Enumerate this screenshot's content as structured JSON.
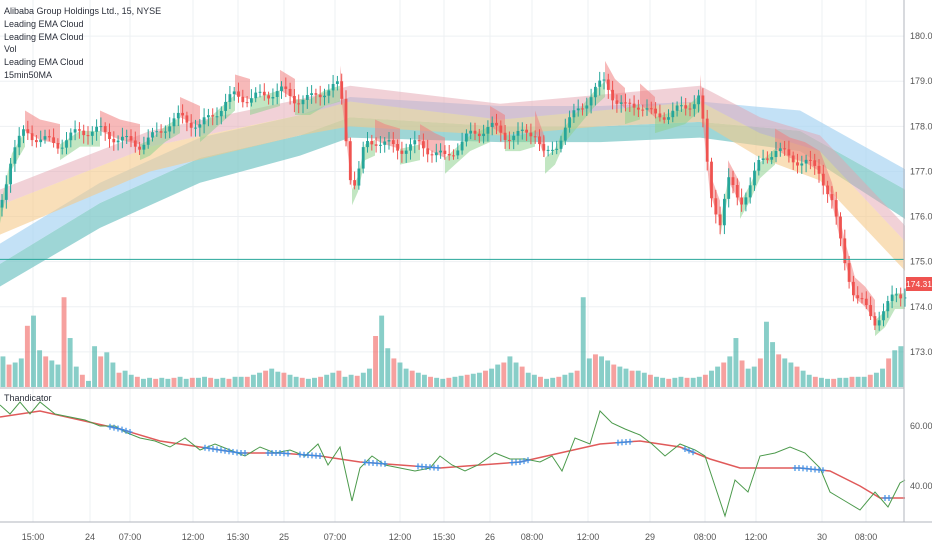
{
  "legend": {
    "title": "Alibaba Group Holdings Ltd., 15, NYSE",
    "items": [
      "Leading EMA Cloud",
      "Leading EMA Cloud",
      "Vol",
      "Leading EMA Cloud",
      "15min50MA"
    ]
  },
  "lower_pane_title": "Thandicator",
  "last_price_label": "174.31",
  "colors": {
    "up": "#26a69a",
    "down": "#ef5350",
    "ema_long": "#7ec8c8",
    "ema_mid": "#a9d4f2",
    "cloud_green": "#8fd18f",
    "cloud_red": "#f08080",
    "cloud_orange": "#f5c98a",
    "cloud_pink": "#e3a3b0",
    "osc_green": "#4c9a4c",
    "osc_red": "#e05a5a",
    "osc_marker": "#3a8ee6",
    "horizontal_line": "#26a69a"
  },
  "chart_data": [
    {
      "type": "line",
      "title": "Alibaba Group Holdings Ltd., 15, NYSE",
      "y_ticks": [
        "180.00",
        "179.00",
        "178.00",
        "177.00",
        "176.00",
        "175.00",
        "174.00",
        "173.00"
      ],
      "ylim": [
        172.2,
        180.8
      ],
      "x_ticks": [
        "15:00",
        "24",
        "07:00",
        "12:00",
        "15:30",
        "25",
        "07:00",
        "12:00",
        "15:30",
        "26",
        "08:00",
        "12:00",
        "29",
        "08:00",
        "12:00",
        "30",
        "08:00"
      ],
      "close_series": [
        [
          0,
          176.2
        ],
        [
          12,
          177.4
        ],
        [
          25,
          177.9
        ],
        [
          40,
          177.7
        ],
        [
          60,
          177.6
        ],
        [
          80,
          177.9
        ],
        [
          100,
          177.9
        ],
        [
          120,
          177.7
        ],
        [
          140,
          177.6
        ],
        [
          150,
          177.7
        ],
        [
          165,
          178.0
        ],
        [
          180,
          178.2
        ],
        [
          200,
          178.0
        ],
        [
          220,
          178.4
        ],
        [
          235,
          178.7
        ],
        [
          250,
          178.6
        ],
        [
          265,
          178.7
        ],
        [
          280,
          178.8
        ],
        [
          295,
          178.6
        ],
        [
          310,
          178.6
        ],
        [
          325,
          178.8
        ],
        [
          340,
          178.9
        ],
        [
          352,
          176.6
        ],
        [
          358,
          176.9
        ],
        [
          365,
          177.6
        ],
        [
          375,
          177.7
        ],
        [
          385,
          177.6
        ],
        [
          400,
          177.5
        ],
        [
          420,
          177.6
        ],
        [
          435,
          177.4
        ],
        [
          445,
          177.3
        ],
        [
          455,
          177.5
        ],
        [
          470,
          177.8
        ],
        [
          490,
          178.0
        ],
        [
          505,
          177.8
        ],
        [
          520,
          177.8
        ],
        [
          535,
          177.9
        ],
        [
          545,
          177.3
        ],
        [
          555,
          177.5
        ],
        [
          565,
          178.0
        ],
        [
          580,
          178.4
        ],
        [
          595,
          178.8
        ],
        [
          605,
          179.0
        ],
        [
          615,
          178.6
        ],
        [
          625,
          178.4
        ],
        [
          640,
          178.5
        ],
        [
          655,
          178.2
        ],
        [
          670,
          178.3
        ],
        [
          685,
          178.4
        ],
        [
          700,
          178.7
        ],
        [
          710,
          176.5
        ],
        [
          720,
          175.9
        ],
        [
          728,
          176.8
        ],
        [
          740,
          176.3
        ],
        [
          750,
          176.7
        ],
        [
          760,
          177.2
        ],
        [
          775,
          177.5
        ],
        [
          790,
          177.3
        ],
        [
          805,
          177.2
        ],
        [
          820,
          177.0
        ],
        [
          832,
          176.3
        ],
        [
          845,
          175.0
        ],
        [
          855,
          174.2
        ],
        [
          865,
          174.0
        ],
        [
          875,
          173.7
        ],
        [
          885,
          173.9
        ],
        [
          895,
          174.3
        ],
        [
          905,
          174.3
        ]
      ],
      "horizontal_line": 175.05,
      "series": [
        {
          "name": "Leading EMA Cloud",
          "values_upper": [
            [
              0,
              176.0
            ],
            [
              150,
              177.3
            ],
            [
              300,
              178.0
            ],
            [
              350,
              178.3
            ],
            [
              500,
              177.9
            ],
            [
              600,
              178.1
            ],
            [
              700,
              178.3
            ],
            [
              760,
              177.6
            ],
            [
              820,
              177.2
            ],
            [
              905,
              175.2
            ]
          ],
          "values_lower": [
            [
              0,
              175.6
            ],
            [
              150,
              177.0
            ],
            [
              300,
              177.8
            ],
            [
              350,
              178.0
            ],
            [
              500,
              177.8
            ],
            [
              600,
              178.0
            ],
            [
              700,
              178.1
            ],
            [
              760,
              177.3
            ],
            [
              820,
              176.8
            ],
            [
              905,
              174.8
            ]
          ]
        },
        {
          "name": "15min50MA",
          "values_upper": [
            [
              0,
              174.95
            ],
            [
              100,
              176.3
            ],
            [
              200,
              177.3
            ],
            [
              300,
              177.8
            ],
            [
              350,
              178.2
            ],
            [
              500,
              178.0
            ],
            [
              600,
              178.0
            ],
            [
              700,
              178.1
            ],
            [
              800,
              177.9
            ],
            [
              905,
              176.6
            ]
          ],
          "values_lower": [
            [
              0,
              174.7
            ],
            [
              100,
              176.0
            ],
            [
              200,
              177.0
            ],
            [
              300,
              177.6
            ],
            [
              350,
              178.0
            ],
            [
              500,
              177.9
            ],
            [
              600,
              177.9
            ],
            [
              700,
              178.0
            ],
            [
              800,
              177.7
            ],
            [
              905,
              176.2
            ]
          ]
        }
      ]
    },
    {
      "type": "bar",
      "title": "Vol",
      "values": [
        30,
        22,
        24,
        28,
        60,
        70,
        36,
        30,
        26,
        22,
        88,
        48,
        20,
        12,
        6,
        40,
        30,
        34,
        24,
        14,
        16,
        12,
        10,
        8,
        9,
        8,
        9,
        8,
        9,
        10,
        8,
        9,
        9,
        10,
        9,
        8,
        9,
        8,
        10,
        10,
        10,
        12,
        14,
        16,
        18,
        15,
        14,
        12,
        10,
        9,
        8,
        9,
        10,
        12,
        14,
        16,
        10,
        12,
        11,
        14,
        18,
        50,
        70,
        38,
        28,
        24,
        18,
        16,
        14,
        12,
        10,
        9,
        8,
        9,
        10,
        11,
        12,
        13,
        14,
        16,
        18,
        22,
        24,
        30,
        24,
        20,
        14,
        12,
        10,
        8,
        9,
        10,
        12,
        14,
        16,
        88,
        28,
        32,
        30,
        26,
        22,
        20,
        18,
        16,
        16,
        14,
        12,
        10,
        9,
        8,
        9,
        10,
        9,
        9,
        10,
        12,
        16,
        20,
        24,
        30,
        48,
        26,
        18,
        20,
        28,
        64,
        44,
        32,
        28,
        24,
        20,
        16,
        12,
        10,
        9,
        8,
        8,
        9,
        9,
        10,
        10,
        10,
        12,
        14,
        18,
        28,
        36,
        40
      ],
      "color_pattern": "alternating up/down",
      "ylim": [
        0,
        100
      ]
    },
    {
      "type": "line",
      "title": "Thandicator",
      "y_ticks": [
        "60.00",
        "40.00"
      ],
      "ylim": [
        28,
        72
      ],
      "oscillator": [
        [
          0,
          67
        ],
        [
          10,
          64
        ],
        [
          20,
          68
        ],
        [
          30,
          64
        ],
        [
          40,
          68
        ],
        [
          55,
          64
        ],
        [
          70,
          63
        ],
        [
          85,
          62
        ],
        [
          100,
          60
        ],
        [
          115,
          60
        ],
        [
          125,
          58
        ],
        [
          140,
          56
        ],
        [
          155,
          55
        ],
        [
          170,
          53
        ],
        [
          185,
          56
        ],
        [
          200,
          52
        ],
        [
          215,
          54
        ],
        [
          230,
          52
        ],
        [
          245,
          50
        ],
        [
          260,
          53
        ],
        [
          275,
          51
        ],
        [
          290,
          52
        ],
        [
          305,
          50
        ],
        [
          318,
          54
        ],
        [
          328,
          47
        ],
        [
          340,
          53
        ],
        [
          352,
          35
        ],
        [
          360,
          46
        ],
        [
          372,
          50
        ],
        [
          385,
          47
        ],
        [
          400,
          46
        ],
        [
          415,
          45
        ],
        [
          430,
          46
        ],
        [
          440,
          50
        ],
        [
          452,
          47
        ],
        [
          465,
          45
        ],
        [
          478,
          47
        ],
        [
          495,
          51
        ],
        [
          510,
          49
        ],
        [
          525,
          49
        ],
        [
          540,
          48
        ],
        [
          552,
          50
        ],
        [
          562,
          45
        ],
        [
          575,
          56
        ],
        [
          590,
          54
        ],
        [
          600,
          65
        ],
        [
          612,
          61
        ],
        [
          625,
          59
        ],
        [
          640,
          57
        ],
        [
          652,
          54
        ],
        [
          665,
          50
        ],
        [
          680,
          54
        ],
        [
          695,
          52
        ],
        [
          705,
          50
        ],
        [
          715,
          40
        ],
        [
          725,
          30
        ],
        [
          735,
          42
        ],
        [
          748,
          38
        ],
        [
          760,
          50
        ],
        [
          775,
          51
        ],
        [
          790,
          53
        ],
        [
          805,
          51
        ],
        [
          820,
          46
        ],
        [
          830,
          38
        ],
        [
          845,
          35
        ],
        [
          860,
          32
        ],
        [
          875,
          38
        ],
        [
          888,
          33
        ],
        [
          900,
          41
        ],
        [
          905,
          42
        ]
      ],
      "signal": [
        [
          0,
          63
        ],
        [
          40,
          65
        ],
        [
          80,
          62
        ],
        [
          120,
          59
        ],
        [
          160,
          55
        ],
        [
          200,
          53
        ],
        [
          240,
          51
        ],
        [
          280,
          51
        ],
        [
          320,
          50
        ],
        [
          360,
          48
        ],
        [
          400,
          47
        ],
        [
          440,
          46
        ],
        [
          480,
          47
        ],
        [
          520,
          48
        ],
        [
          560,
          51
        ],
        [
          600,
          54
        ],
        [
          640,
          55
        ],
        [
          680,
          53
        ],
        [
          710,
          49
        ],
        [
          740,
          46
        ],
        [
          770,
          46
        ],
        [
          800,
          46
        ],
        [
          830,
          45
        ],
        [
          860,
          40
        ],
        [
          880,
          36
        ],
        [
          905,
          36
        ]
      ]
    }
  ]
}
